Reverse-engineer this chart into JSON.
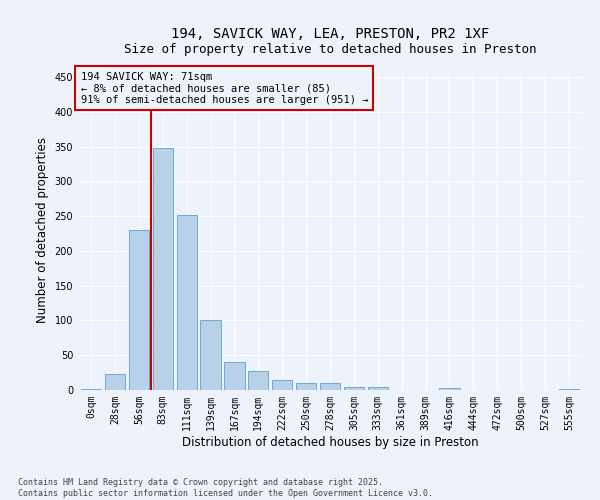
{
  "title_line1": "194, SAVICK WAY, LEA, PRESTON, PR2 1XF",
  "title_line2": "Size of property relative to detached houses in Preston",
  "xlabel": "Distribution of detached houses by size in Preston",
  "ylabel": "Number of detached properties",
  "bar_labels": [
    "0sqm",
    "28sqm",
    "56sqm",
    "83sqm",
    "111sqm",
    "139sqm",
    "167sqm",
    "194sqm",
    "222sqm",
    "250sqm",
    "278sqm",
    "305sqm",
    "333sqm",
    "361sqm",
    "389sqm",
    "416sqm",
    "444sqm",
    "472sqm",
    "500sqm",
    "527sqm",
    "555sqm"
  ],
  "bar_values": [
    2,
    23,
    230,
    348,
    252,
    100,
    40,
    27,
    15,
    10,
    10,
    5,
    5,
    0,
    0,
    3,
    0,
    0,
    0,
    0,
    2
  ],
  "bar_color": "#b8d0e8",
  "bar_edge_color": "#6aaad4",
  "background_color": "#eef2fa",
  "grid_color": "#ffffff",
  "vline_color": "#cc0000",
  "vline_x_idx": 2.5,
  "annotation_text": "194 SAVICK WAY: 71sqm\n← 8% of detached houses are smaller (85)\n91% of semi-detached houses are larger (951) →",
  "annotation_box_color": "#cc0000",
  "ylim": [
    0,
    460
  ],
  "yticks": [
    0,
    50,
    100,
    150,
    200,
    250,
    300,
    350,
    400,
    450
  ],
  "title_fontsize": 10,
  "subtitle_fontsize": 9,
  "axis_label_fontsize": 8.5,
  "tick_fontsize": 7,
  "annotation_fontsize": 7.5,
  "footnote": "Contains HM Land Registry data © Crown copyright and database right 2025.\nContains public sector information licensed under the Open Government Licence v3.0.",
  "footnote_fontsize": 6
}
